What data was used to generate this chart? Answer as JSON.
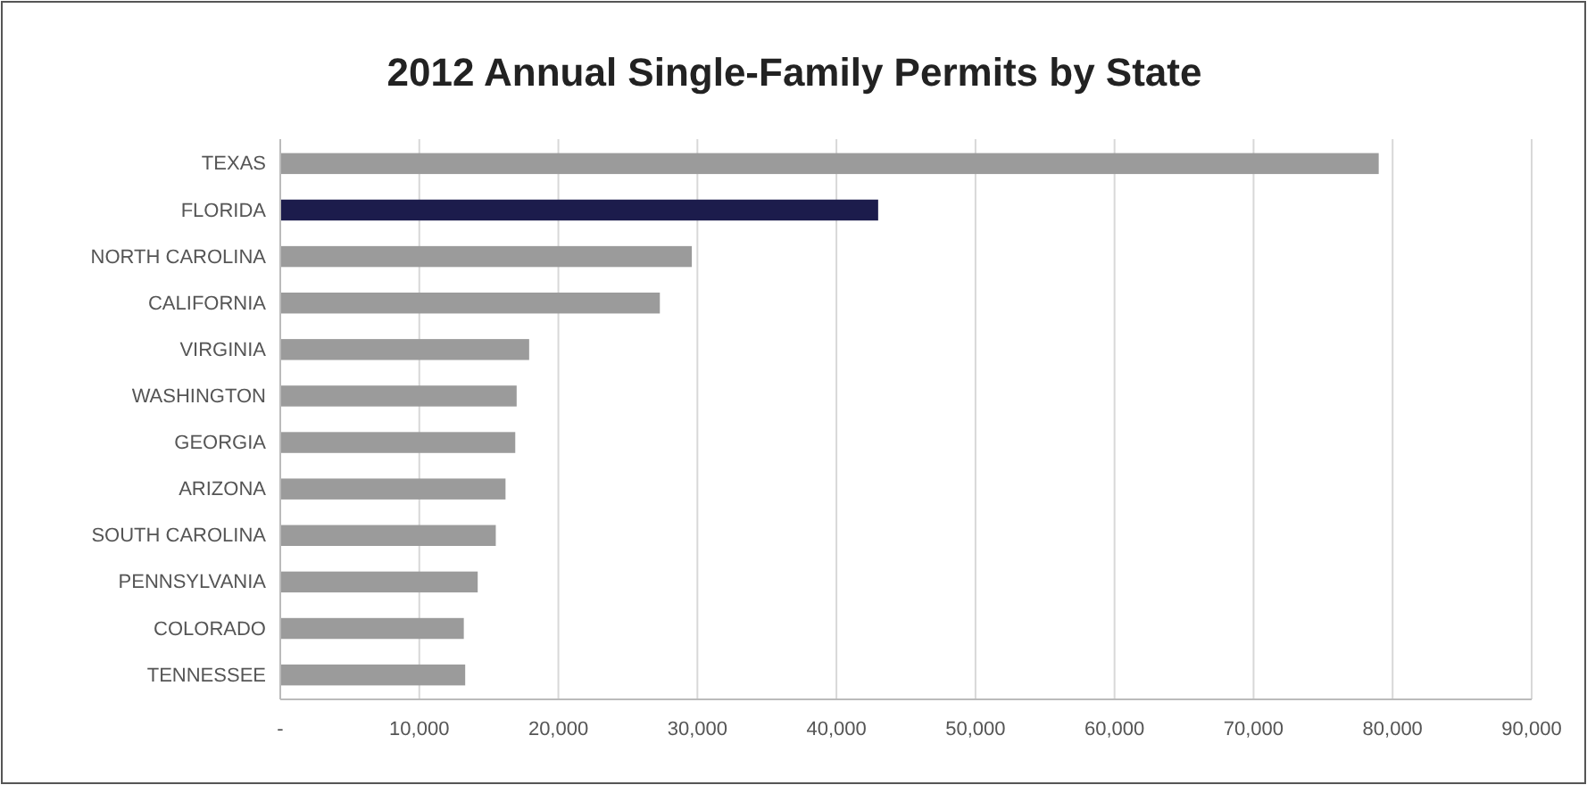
{
  "chart_data": {
    "type": "bar",
    "orientation": "horizontal",
    "title": "2012 Annual Single-Family Permits by State",
    "categories": [
      "TEXAS",
      "FLORIDA",
      "NORTH CAROLINA",
      "CALIFORNIA",
      "VIRGINIA",
      "WASHINGTON",
      "GEORGIA",
      "ARIZONA",
      "SOUTH CAROLINA",
      "PENNSYLVANIA",
      "COLORADO",
      "TENNESSEE"
    ],
    "values": [
      79000,
      43000,
      29600,
      27300,
      17900,
      17000,
      16900,
      16200,
      15500,
      14200,
      13200,
      13300
    ],
    "colors": [
      "#9b9b9b",
      "#1c1c4c",
      "#9b9b9b",
      "#9b9b9b",
      "#9b9b9b",
      "#9b9b9b",
      "#9b9b9b",
      "#9b9b9b",
      "#9b9b9b",
      "#9b9b9b",
      "#9b9b9b",
      "#9b9b9b"
    ],
    "xlim": [
      0,
      90000
    ],
    "xticks": [
      {
        "value": 0,
        "label": "-"
      },
      {
        "value": 10000,
        "label": "10,000"
      },
      {
        "value": 20000,
        "label": "20,000"
      },
      {
        "value": 30000,
        "label": "30,000"
      },
      {
        "value": 40000,
        "label": "40,000"
      },
      {
        "value": 50000,
        "label": "50,000"
      },
      {
        "value": 60000,
        "label": "60,000"
      },
      {
        "value": 70000,
        "label": "70,000"
      },
      {
        "value": 80000,
        "label": "80,000"
      },
      {
        "value": 90000,
        "label": "90,000"
      }
    ],
    "grid": "x"
  }
}
